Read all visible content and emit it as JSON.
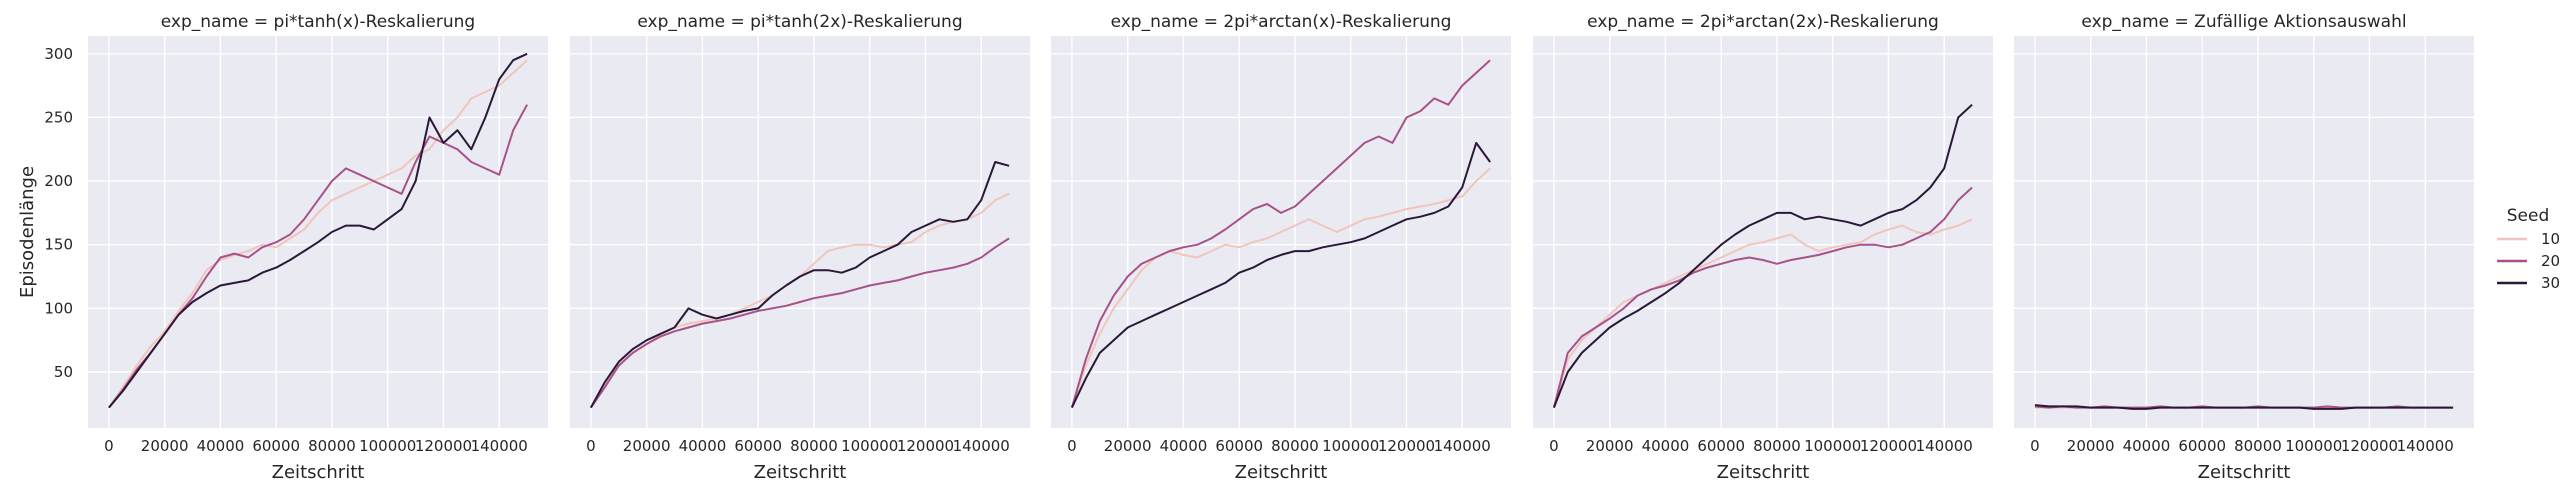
{
  "chart_data": {
    "type": "line",
    "facet_prefix": "exp_name = ",
    "facets": [
      "pi*tanh(x)-Reskalierung",
      "pi*tanh(2x)-Reskalierung",
      "2pi*arctan(x)-Reskalierung",
      "2pi*arctan(2x)-Reskalierung",
      "Zufällige Aktionsauswahl"
    ],
    "xlabel": "Zeitschritt",
    "ylabel": "Episodenlänge",
    "xlim": [
      -7500,
      157500
    ],
    "ylim": [
      6,
      314
    ],
    "xticks": [
      0,
      20000,
      40000,
      60000,
      80000,
      100000,
      120000,
      140000
    ],
    "yticks": [
      50,
      100,
      150,
      200,
      250,
      300
    ],
    "grid": true,
    "legend": {
      "title": "Seed",
      "placement": "right",
      "entries": [
        {
          "label": "10",
          "color": "#f0c5bc"
        },
        {
          "label": "20",
          "color": "#a8528a"
        },
        {
          "label": "30",
          "color": "#2a1838"
        }
      ]
    },
    "x": [
      0,
      5000,
      10000,
      15000,
      20000,
      25000,
      30000,
      35000,
      40000,
      45000,
      50000,
      55000,
      60000,
      65000,
      70000,
      75000,
      80000,
      85000,
      90000,
      95000,
      100000,
      105000,
      110000,
      115000,
      120000,
      125000,
      130000,
      135000,
      140000,
      145000,
      150000
    ],
    "panels": [
      {
        "series": [
          {
            "name": "10",
            "values": [
              22,
              38,
              55,
              70,
              82,
              98,
              112,
              130,
              138,
              142,
              145,
              150,
              148,
              155,
              162,
              175,
              185,
              190,
              195,
              200,
              205,
              210,
              220,
              225,
              240,
              250,
              265,
              270,
              275,
              285,
              295
            ]
          },
          {
            "name": "20",
            "values": [
              22,
              36,
              52,
              65,
              80,
              95,
              108,
              125,
              140,
              143,
              140,
              148,
              152,
              158,
              170,
              185,
              200,
              210,
              205,
              200,
              195,
              190,
              215,
              235,
              230,
              225,
              215,
              210,
              205,
              240,
              260
            ]
          },
          {
            "name": "30",
            "values": [
              22,
              35,
              50,
              65,
              80,
              95,
              105,
              112,
              118,
              120,
              122,
              128,
              132,
              138,
              145,
              152,
              160,
              165,
              165,
              162,
              170,
              178,
              200,
              250,
              230,
              240,
              225,
              250,
              280,
              295,
              300
            ]
          }
        ]
      },
      {
        "series": [
          {
            "name": "10",
            "values": [
              22,
              40,
              55,
              65,
              72,
              80,
              85,
              88,
              90,
              92,
              95,
              100,
              105,
              110,
              118,
              125,
              135,
              145,
              148,
              150,
              150,
              148,
              150,
              152,
              160,
              165,
              168,
              170,
              175,
              185,
              190
            ]
          },
          {
            "name": "20",
            "values": [
              22,
              38,
              55,
              65,
              72,
              78,
              82,
              85,
              88,
              90,
              92,
              95,
              98,
              100,
              102,
              105,
              108,
              110,
              112,
              115,
              118,
              120,
              122,
              125,
              128,
              130,
              132,
              135,
              140,
              148,
              155
            ]
          },
          {
            "name": "30",
            "values": [
              22,
              42,
              58,
              68,
              75,
              80,
              85,
              100,
              95,
              92,
              95,
              98,
              100,
              110,
              118,
              125,
              130,
              130,
              128,
              132,
              140,
              145,
              150,
              160,
              165,
              170,
              168,
              170,
              185,
              215,
              212
            ]
          }
        ]
      },
      {
        "series": [
          {
            "name": "10",
            "values": [
              22,
              55,
              80,
              100,
              115,
              130,
              140,
              145,
              142,
              140,
              145,
              150,
              148,
              152,
              155,
              160,
              165,
              170,
              165,
              160,
              165,
              170,
              172,
              175,
              178,
              180,
              182,
              185,
              188,
              200,
              210
            ]
          },
          {
            "name": "20",
            "values": [
              22,
              60,
              90,
              110,
              125,
              135,
              140,
              145,
              148,
              150,
              155,
              162,
              170,
              178,
              182,
              175,
              180,
              190,
              200,
              210,
              220,
              230,
              235,
              230,
              250,
              255,
              265,
              260,
              275,
              285,
              295
            ]
          },
          {
            "name": "30",
            "values": [
              22,
              45,
              65,
              75,
              85,
              90,
              95,
              100,
              105,
              110,
              115,
              120,
              128,
              132,
              138,
              142,
              145,
              145,
              148,
              150,
              152,
              155,
              160,
              165,
              170,
              172,
              175,
              180,
              195,
              230,
              215
            ]
          }
        ]
      },
      {
        "series": [
          {
            "name": "10",
            "values": [
              22,
              60,
              75,
              85,
              95,
              105,
              110,
              115,
              120,
              125,
              130,
              135,
              140,
              145,
              150,
              152,
              155,
              158,
              150,
              145,
              148,
              150,
              152,
              158,
              162,
              165,
              160,
              158,
              162,
              165,
              170
            ]
          },
          {
            "name": "20",
            "values": [
              22,
              65,
              78,
              85,
              92,
              100,
              110,
              115,
              118,
              122,
              128,
              132,
              135,
              138,
              140,
              138,
              135,
              138,
              140,
              142,
              145,
              148,
              150,
              150,
              148,
              150,
              155,
              160,
              170,
              185,
              195
            ]
          },
          {
            "name": "30",
            "values": [
              22,
              50,
              65,
              75,
              85,
              92,
              98,
              105,
              112,
              120,
              130,
              140,
              150,
              158,
              165,
              170,
              175,
              175,
              170,
              172,
              170,
              168,
              165,
              170,
              175,
              178,
              185,
              195,
              210,
              250,
              260
            ]
          }
        ]
      },
      {
        "series": [
          {
            "name": "10",
            "values": [
              22,
              22,
              22,
              22,
              22,
              22,
              22,
              22,
              22,
              22,
              22,
              22,
              22,
              22,
              22,
              22,
              22,
              22,
              22,
              22,
              22,
              22,
              22,
              22,
              22,
              22,
              22,
              22,
              22,
              22,
              22
            ]
          },
          {
            "name": "20",
            "values": [
              23,
              22,
              23,
              22,
              22,
              23,
              22,
              22,
              22,
              23,
              22,
              22,
              23,
              22,
              22,
              22,
              23,
              22,
              22,
              22,
              22,
              23,
              22,
              22,
              22,
              22,
              23,
              22,
              22,
              22,
              22
            ]
          },
          {
            "name": "30",
            "values": [
              24,
              23,
              23,
              23,
              22,
              22,
              22,
              21,
              21,
              22,
              22,
              22,
              22,
              22,
              22,
              22,
              22,
              22,
              22,
              22,
              21,
              21,
              21,
              22,
              22,
              22,
              22,
              22,
              22,
              22,
              22
            ]
          }
        ]
      }
    ]
  }
}
